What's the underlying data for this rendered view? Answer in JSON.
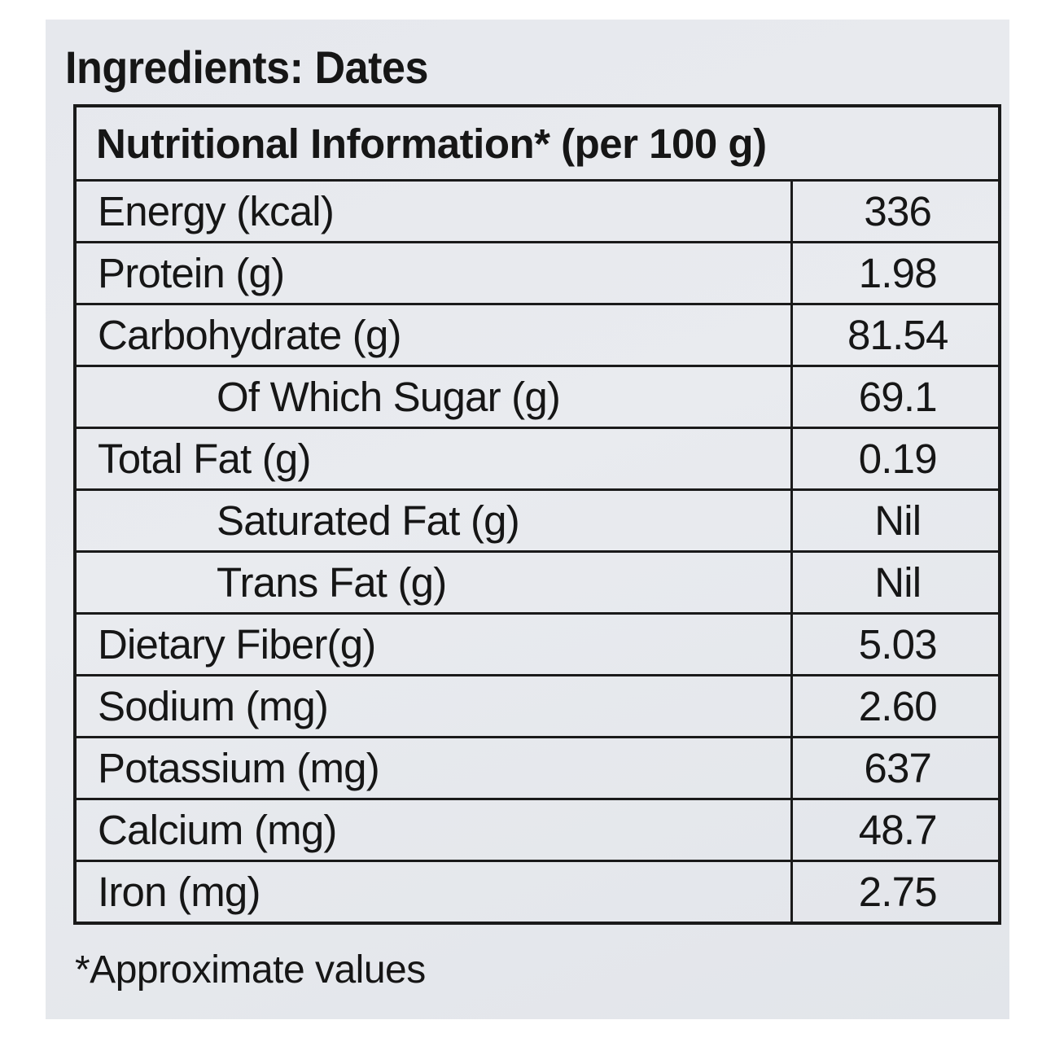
{
  "label": {
    "ingredients": "Ingredients: Dates",
    "table_header": "Nutritional Information* (per 100 g)",
    "rows": [
      {
        "name": "Energy (kcal)",
        "value": "336"
      },
      {
        "name": "Protein (g)",
        "value": "1.98"
      },
      {
        "name": "Carbohydrate (g)",
        "value": "81.54"
      },
      {
        "name": "Of Which Sugar (g)",
        "value": "69.1"
      },
      {
        "name": "Total Fat (g)",
        "value": "0.19"
      },
      {
        "name": "Saturated Fat (g)",
        "value": "Nil"
      },
      {
        "name": "Trans Fat (g)",
        "value": "Nil"
      },
      {
        "name": "Dietary Fiber(g)",
        "value": "5.03"
      },
      {
        "name": "Sodium (mg)",
        "value": "2.60"
      },
      {
        "name": "Potassium (mg)",
        "value": "637"
      },
      {
        "name": "Calcium (mg)",
        "value": "48.7"
      },
      {
        "name": "Iron (mg)",
        "value": "2.75"
      }
    ],
    "footnote": "*Approximate values"
  }
}
